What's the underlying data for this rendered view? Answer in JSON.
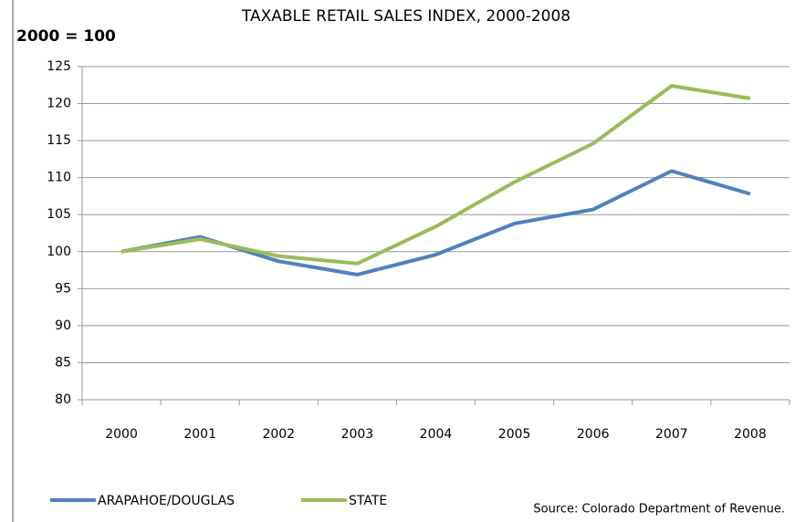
{
  "chart_data": {
    "type": "line",
    "title": "TAXABLE RETAIL SALES INDEX, 2000-2008",
    "y_label": "2000 = 100",
    "source": "Source: Colorado Department of Revenue.",
    "categories": [
      "2000",
      "2001",
      "2002",
      "2003",
      "2004",
      "2005",
      "2006",
      "2007",
      "2008"
    ],
    "series": [
      {
        "name": "ARAPAHOE/DOUGLAS",
        "color": "#4f81bd",
        "values": [
          100,
          102,
          98.7,
          96.9,
          99.6,
          103.8,
          105.7,
          110.9,
          107.8
        ]
      },
      {
        "name": "STATE",
        "color": "#9bbb59",
        "values": [
          100,
          101.7,
          99.4,
          98.4,
          103.4,
          109.4,
          114.6,
          122.4,
          120.7
        ]
      }
    ],
    "ylim": [
      80,
      125
    ],
    "yticks": [
      80,
      85,
      90,
      95,
      100,
      105,
      110,
      115,
      120,
      125
    ],
    "grid": true,
    "legend": "bottom"
  }
}
